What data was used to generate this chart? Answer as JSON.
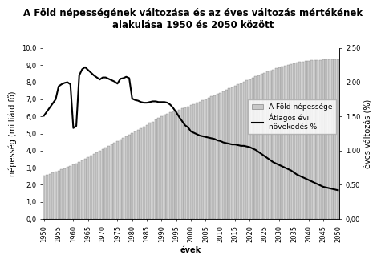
{
  "title": "A Föld népességének változása és az éves változás mértékének\nalakulása 1950 és 2050 között",
  "xlabel": "évek",
  "ylabel_left": "népesség (milliárd fő)",
  "ylabel_right": "éves változás (%)",
  "years": [
    1950,
    1951,
    1952,
    1953,
    1954,
    1955,
    1956,
    1957,
    1958,
    1959,
    1960,
    1961,
    1962,
    1963,
    1964,
    1965,
    1966,
    1967,
    1968,
    1969,
    1970,
    1971,
    1972,
    1973,
    1974,
    1975,
    1976,
    1977,
    1978,
    1979,
    1980,
    1981,
    1982,
    1983,
    1984,
    1985,
    1986,
    1987,
    1988,
    1989,
    1990,
    1991,
    1992,
    1993,
    1994,
    1995,
    1996,
    1997,
    1998,
    1999,
    2000,
    2001,
    2002,
    2003,
    2004,
    2005,
    2006,
    2007,
    2008,
    2009,
    2010,
    2011,
    2012,
    2013,
    2014,
    2015,
    2016,
    2017,
    2018,
    2019,
    2020,
    2021,
    2022,
    2023,
    2024,
    2025,
    2026,
    2027,
    2028,
    2029,
    2030,
    2031,
    2032,
    2033,
    2034,
    2035,
    2036,
    2037,
    2038,
    2039,
    2040,
    2041,
    2042,
    2043,
    2044,
    2045,
    2046,
    2047,
    2048,
    2049,
    2050
  ],
  "population": [
    2.53,
    2.59,
    2.65,
    2.71,
    2.77,
    2.84,
    2.91,
    2.98,
    3.04,
    3.11,
    3.18,
    3.26,
    3.34,
    3.43,
    3.52,
    3.61,
    3.7,
    3.79,
    3.88,
    3.97,
    4.07,
    4.17,
    4.26,
    4.36,
    4.45,
    4.54,
    4.64,
    4.73,
    4.83,
    4.92,
    5.02,
    5.12,
    5.22,
    5.31,
    5.41,
    5.51,
    5.61,
    5.7,
    5.8,
    5.9,
    5.99,
    6.09,
    6.16,
    6.22,
    6.29,
    6.35,
    6.4,
    6.46,
    6.52,
    6.58,
    6.65,
    6.72,
    6.79,
    6.86,
    6.93,
    7.01,
    7.08,
    7.16,
    7.23,
    7.31,
    7.39,
    7.47,
    7.55,
    7.63,
    7.71,
    7.79,
    7.87,
    7.95,
    8.03,
    8.11,
    8.18,
    8.26,
    8.34,
    8.41,
    8.48,
    8.55,
    8.62,
    8.69,
    8.75,
    8.81,
    8.87,
    8.93,
    8.98,
    9.03,
    9.07,
    9.11,
    9.15,
    9.18,
    9.2,
    9.23,
    9.25,
    9.27,
    9.29,
    9.3,
    9.31,
    9.32,
    9.33,
    9.33,
    9.33,
    9.33,
    9.33
  ],
  "annual_change": [
    1.51,
    1.57,
    1.63,
    1.69,
    1.75,
    1.94,
    1.97,
    1.99,
    2.0,
    1.97,
    1.33,
    1.36,
    2.1,
    2.19,
    2.22,
    2.18,
    2.14,
    2.1,
    2.07,
    2.04,
    2.07,
    2.07,
    2.05,
    2.03,
    2.01,
    1.98,
    2.05,
    2.06,
    2.08,
    2.06,
    1.76,
    1.74,
    1.73,
    1.71,
    1.7,
    1.7,
    1.71,
    1.72,
    1.72,
    1.71,
    1.71,
    1.71,
    1.7,
    1.67,
    1.62,
    1.56,
    1.49,
    1.43,
    1.37,
    1.34,
    1.28,
    1.26,
    1.24,
    1.22,
    1.21,
    1.2,
    1.19,
    1.18,
    1.17,
    1.15,
    1.14,
    1.12,
    1.11,
    1.1,
    1.09,
    1.09,
    1.08,
    1.07,
    1.07,
    1.06,
    1.05,
    1.03,
    1.01,
    0.98,
    0.95,
    0.92,
    0.89,
    0.86,
    0.83,
    0.81,
    0.79,
    0.77,
    0.75,
    0.73,
    0.71,
    0.68,
    0.65,
    0.63,
    0.61,
    0.59,
    0.57,
    0.55,
    0.53,
    0.51,
    0.49,
    0.47,
    0.46,
    0.45,
    0.44,
    0.43,
    0.42
  ],
  "bar_color": "#c8c8c8",
  "bar_edge_color": "#888888",
  "line_color": "#000000",
  "ylim_left": [
    0,
    10.0
  ],
  "ylim_right": [
    0.0,
    2.5
  ],
  "yticks_left": [
    0.0,
    1.0,
    2.0,
    3.0,
    4.0,
    5.0,
    6.0,
    7.0,
    8.0,
    9.0,
    10.0
  ],
  "ytick_labels_left": [
    "0,0",
    "1,0",
    "2,0",
    "3,0",
    "4,0",
    "5,0",
    "6,0",
    "7,0",
    "8,0",
    "9,0",
    "10,0"
  ],
  "yticks_right": [
    0.0,
    0.5,
    1.0,
    1.5,
    2.0,
    2.5
  ],
  "ytick_labels_right": [
    "0,00",
    "0,50",
    "1,00",
    "1,50",
    "2,00",
    "2,50"
  ],
  "xticks": [
    1950,
    1955,
    1960,
    1965,
    1970,
    1975,
    1980,
    1985,
    1990,
    1995,
    2000,
    2005,
    2010,
    2015,
    2020,
    2025,
    2030,
    2035,
    2040,
    2045,
    2050
  ],
  "legend_bar_label": "A Föld népessége",
  "legend_line_label": "Átlagos évi\nnövekedés %",
  "background_color": "#ffffff",
  "title_fontsize": 8.5,
  "axis_fontsize": 7,
  "tick_fontsize": 6,
  "legend_fontsize": 6.5
}
